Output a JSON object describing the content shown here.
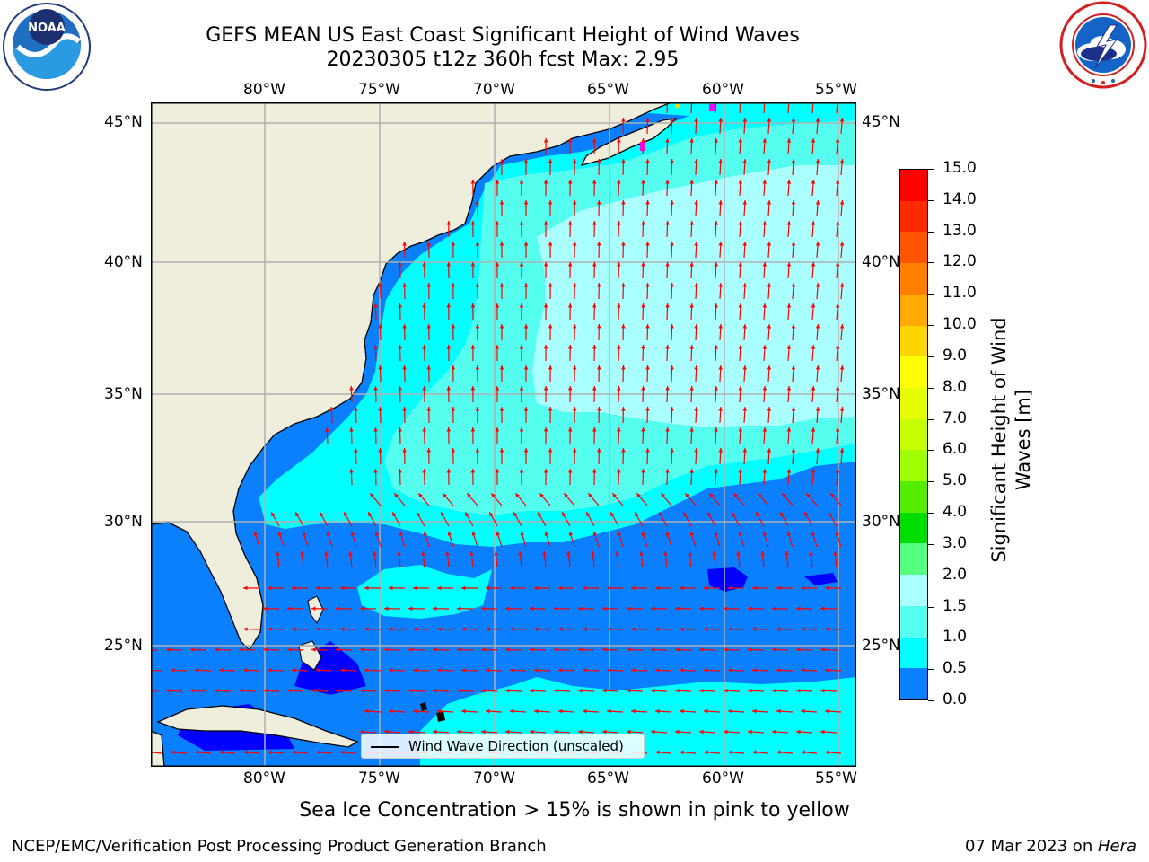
{
  "title": {
    "line1": "GEFS MEAN US East Coast Significant Height of Wind Waves",
    "line2": "20230305 t12z 360h fcst   Max: 2.95"
  },
  "logos": {
    "left": {
      "icon": "noaa-logo",
      "text": "NOAA",
      "ring_text": "NATIONAL OCEANIC AND ATMOSPHERIC ADMINISTRATION · U.S. DEPARTMENT OF COMMERCE"
    },
    "right": {
      "icon": "nws-logo",
      "ring_text": "NATIONAL WEATHER SERVICE"
    }
  },
  "map": {
    "lon_labels": [
      "80°W",
      "75°W",
      "70°W",
      "65°W",
      "60°W",
      "55°W"
    ],
    "lat_labels": [
      "45°N",
      "40°N",
      "35°N",
      "30°N",
      "25°N"
    ],
    "colors": {
      "land": "#efeddc",
      "ocean_low": "#0000ff",
      "ocean_0_5": "#0a80ff",
      "ocean_1_0": "#00ffff",
      "ocean_1_5": "#55fff0",
      "ocean_2_0": "#aaffff",
      "arrow": "#ff0000",
      "grid": "#b0b0b0",
      "ice": "#ff00ff"
    },
    "legend": {
      "label": "Wind Wave Direction (unscaled)"
    }
  },
  "colorbar": {
    "title_line1": "Significant Height of Wind",
    "title_line2": "Waves [m]",
    "ticks": [
      "15.0",
      "14.0",
      "13.0",
      "12.0",
      "11.0",
      "10.0",
      "9.0",
      "8.0",
      "7.0",
      "6.0",
      "5.0",
      "4.0",
      "3.0",
      "2.0",
      "1.5",
      "1.0",
      "0.5",
      "0.0"
    ],
    "colors_top_to_bottom": [
      "#ff0000",
      "#ff2a00",
      "#ff5500",
      "#ff8000",
      "#ffaa00",
      "#ffd500",
      "#ffff00",
      "#e6ff00",
      "#c8ff00",
      "#a0ff00",
      "#55ee00",
      "#00dd00",
      "#55ff80",
      "#aaffff",
      "#55fff0",
      "#00ffff",
      "#0a80ff",
      "#0000ff"
    ]
  },
  "notes": {
    "sea_ice": "Sea Ice Concentration > 15% is shown in pink to yellow"
  },
  "footer": {
    "left": "NCEP/EMC/Verification Post Processing Product Generation Branch",
    "date": "07 Mar 2023 on ",
    "machine": "Hera"
  }
}
